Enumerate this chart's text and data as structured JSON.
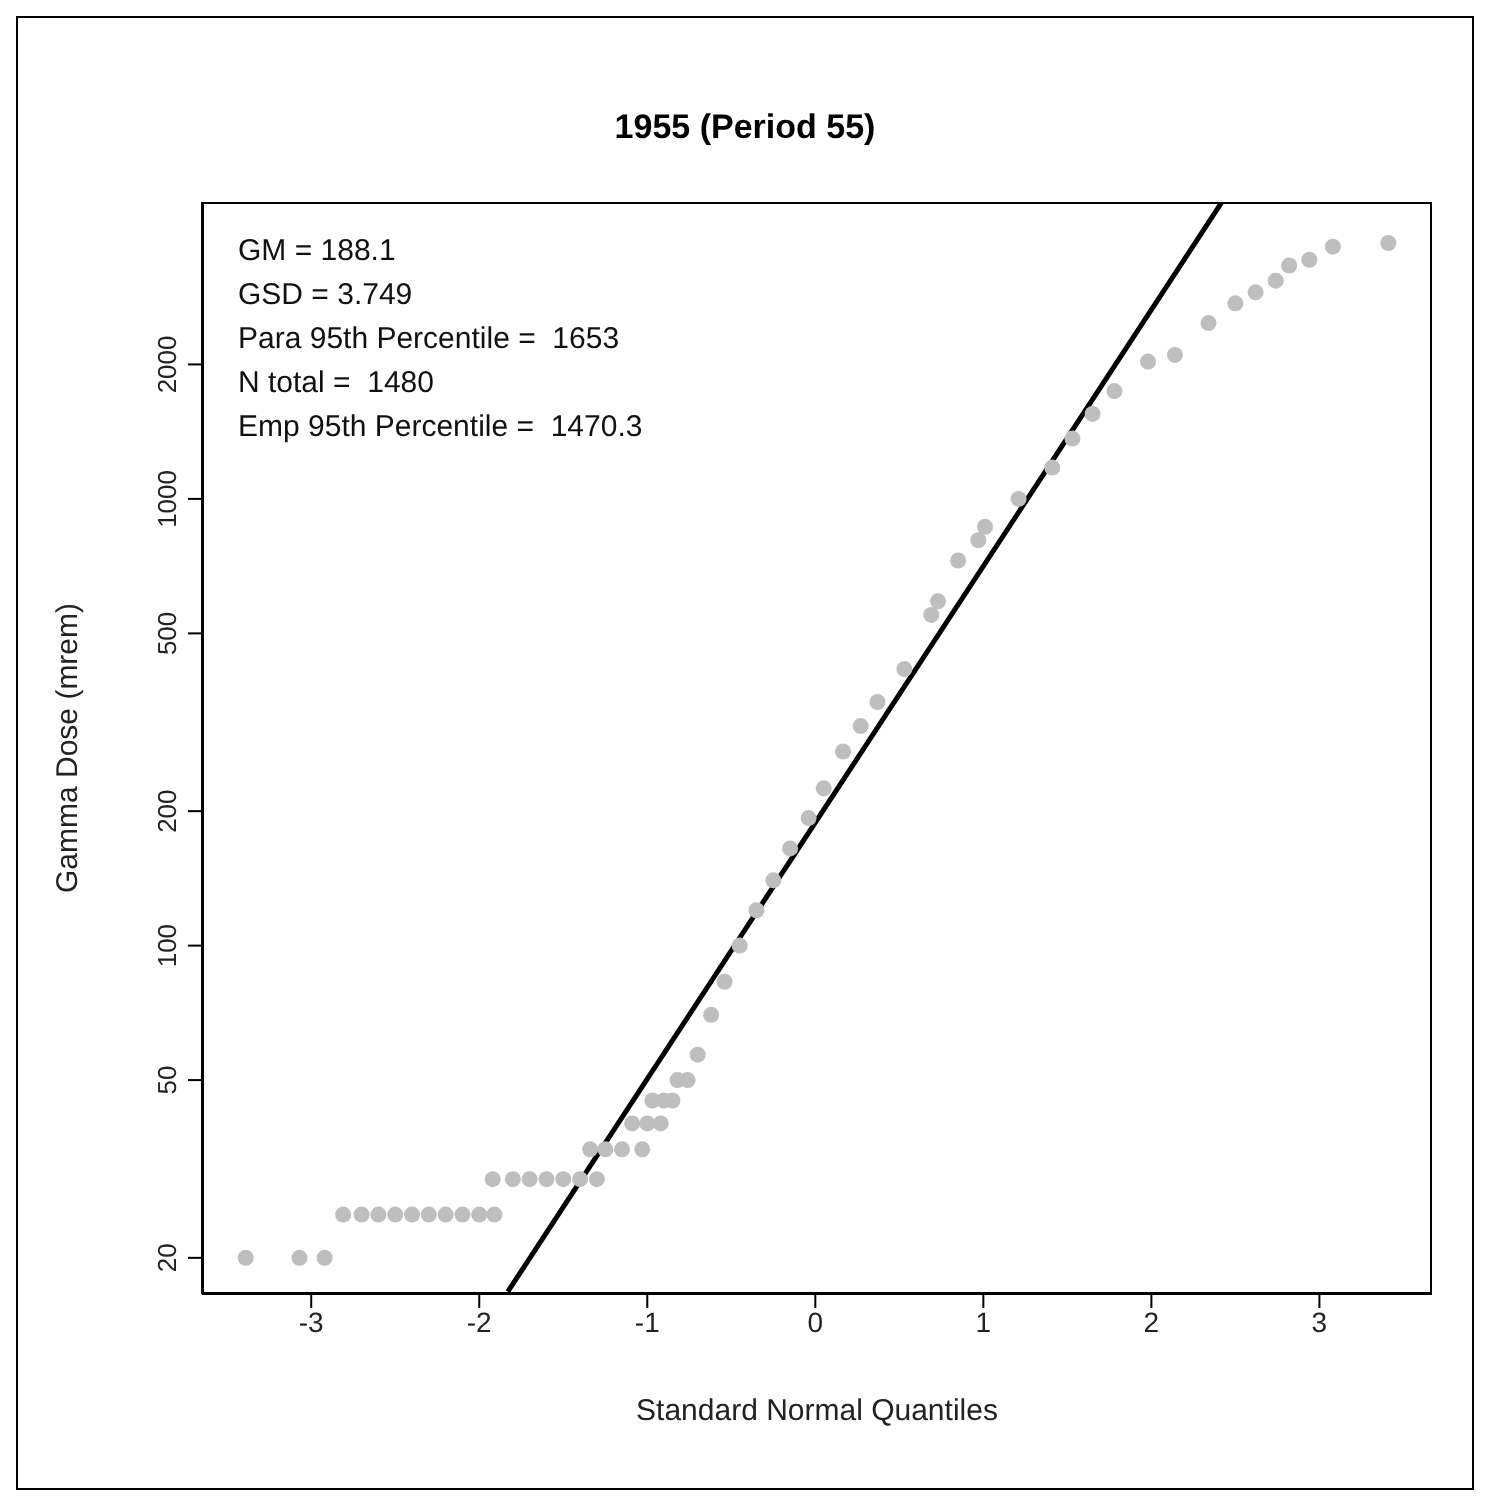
{
  "chart_data": {
    "type": "scatter",
    "title": "1955 (Period 55)",
    "xlabel": "Standard Normal Quantiles",
    "ylabel": "Gamma Dose (mrem)",
    "log": "y",
    "xlim": [
      -3.65,
      3.67
    ],
    "xticks": [
      -3,
      -2,
      -1,
      0,
      1,
      2,
      3
    ],
    "ylim": [
      16.6,
      4620
    ],
    "yticks": [
      20,
      50,
      100,
      200,
      500,
      1000,
      2000
    ],
    "annotations": [
      "GM = 188.1",
      "GSD = 3.749",
      "Para 95th Percentile =  1653",
      "N total =  1480",
      "Emp 95th Percentile =  1470.3"
    ],
    "series": [
      {
        "marker": "circle",
        "color": "#bebebe",
        "x": [
          -3.39,
          -3.07,
          -2.92,
          -2.81,
          -2.7,
          -2.6,
          -2.5,
          -2.4,
          -2.3,
          -2.2,
          -2.1,
          -2.0,
          -1.91,
          -1.92,
          -1.8,
          -1.7,
          -1.6,
          -1.5,
          -1.4,
          -1.3,
          -1.34,
          -1.25,
          -1.15,
          -1.03,
          -1.09,
          -1.0,
          -0.92,
          -0.97,
          -0.9,
          -0.85,
          -0.82,
          -0.76,
          -0.7,
          -0.62,
          -0.54,
          -0.45,
          -0.35,
          -0.25,
          -0.15,
          -0.04,
          0.05,
          0.165,
          0.27,
          0.37,
          0.53,
          0.69,
          0.73,
          0.85,
          0.97,
          1.01,
          1.21,
          1.41,
          1.53,
          1.65,
          1.78,
          1.98,
          2.14,
          2.34,
          2.5,
          2.62,
          2.74,
          2.82,
          2.94,
          3.08,
          3.41
        ],
        "values": [
          20,
          20,
          20,
          25,
          25,
          25,
          25,
          25,
          25,
          25,
          25,
          25,
          25,
          30,
          30,
          30,
          30,
          30,
          30,
          30,
          35,
          35,
          35,
          35,
          40,
          40,
          40,
          45,
          45,
          45,
          50,
          50,
          57,
          70,
          83,
          100,
          120,
          140,
          165,
          193,
          225,
          272,
          310,
          351,
          416,
          550,
          590,
          728,
          808,
          866,
          1000,
          1175,
          1365,
          1550,
          1743,
          2030,
          2100,
          2475,
          2740,
          2900,
          3080,
          3330,
          3430,
          3670,
          3740
        ]
      },
      {
        "type": "line",
        "color": "#000000",
        "line_style": "solid",
        "marker": "none",
        "x": [
          -1.83,
          2.42
        ],
        "values": [
          16.8,
          4620
        ]
      }
    ]
  }
}
